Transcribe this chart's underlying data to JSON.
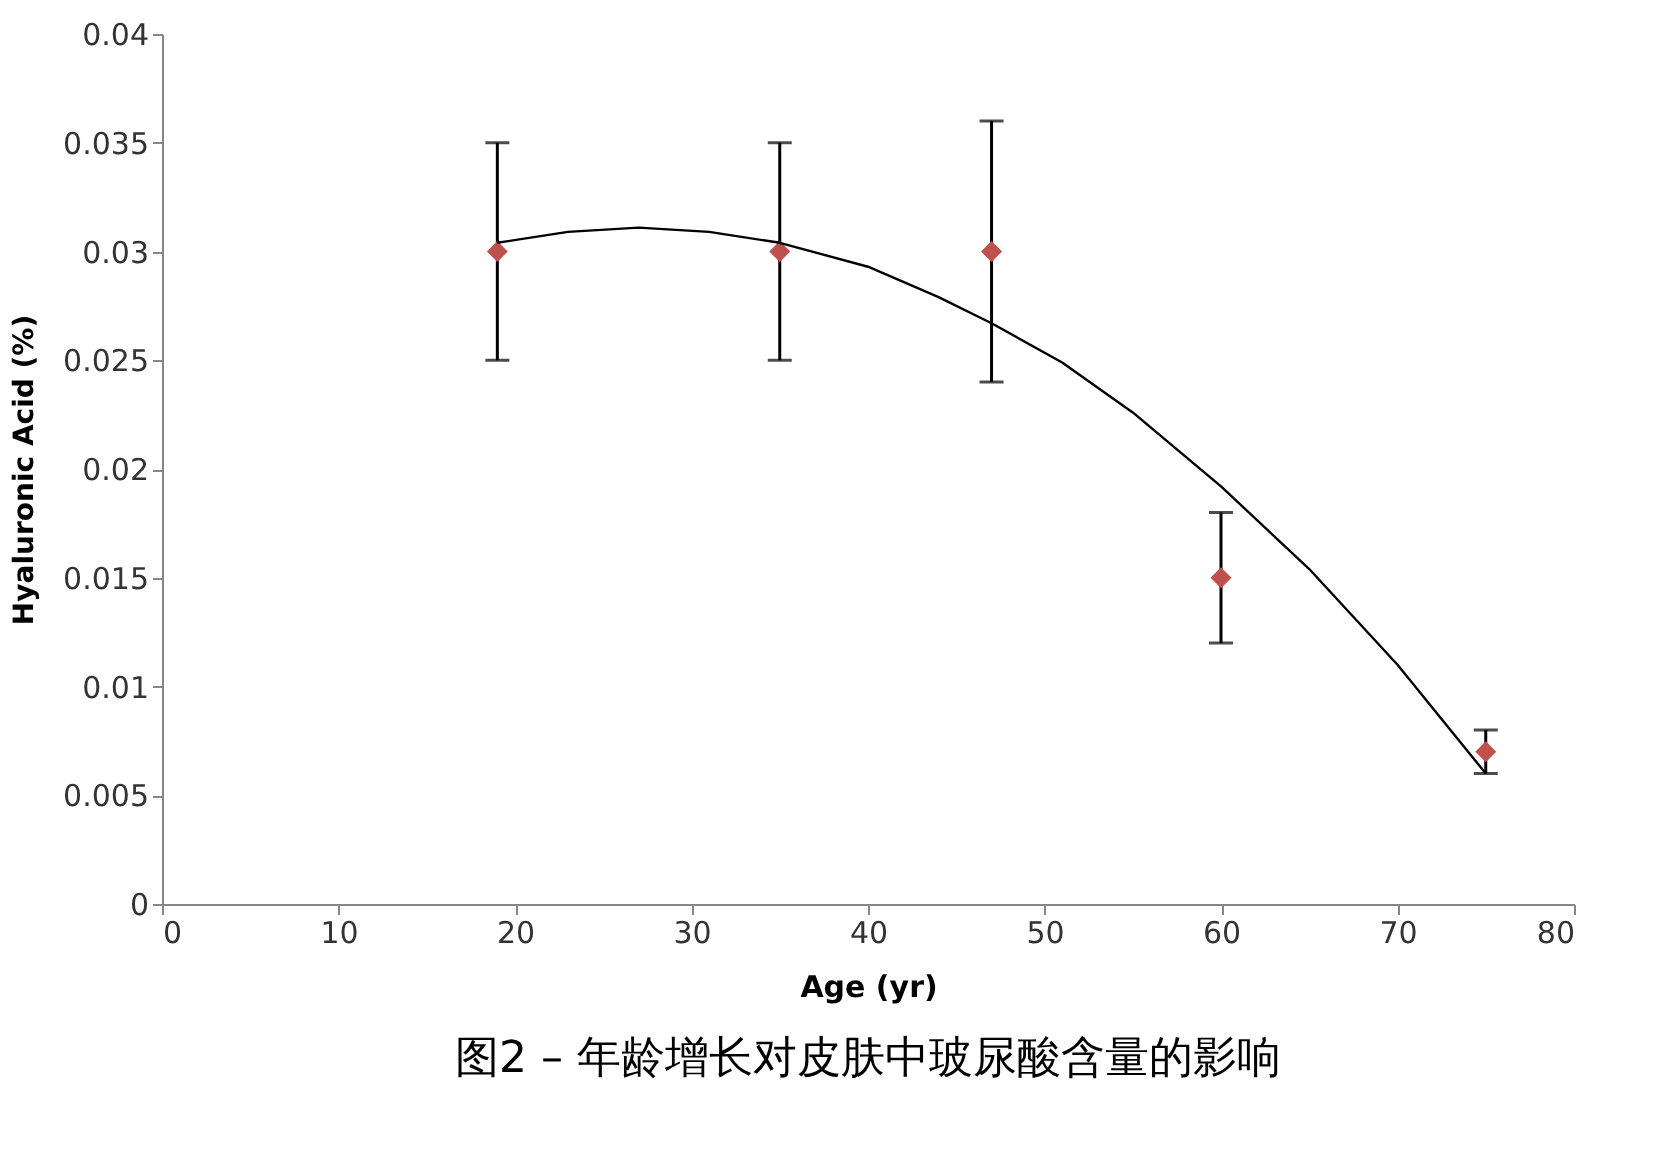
{
  "chart_data": {
    "type": "scatter",
    "title": "图2 – 年龄增长对皮肤中玻尿酸含量的影响",
    "xlabel": "Age (yr)",
    "ylabel": "Hyaluronic Acid (%)",
    "xlim": [
      0,
      80
    ],
    "xticks": [
      0,
      10,
      20,
      30,
      40,
      50,
      60,
      70,
      80
    ],
    "ylim": [
      0,
      0.04
    ],
    "yticks": [
      0,
      0.005,
      0.01,
      0.015,
      0.02,
      0.025,
      0.03,
      0.035,
      0.04
    ],
    "grid": false,
    "marker": "diamond",
    "series": [
      {
        "color": "#c0504d",
        "x": [
          19,
          35,
          47,
          60,
          75
        ],
        "values": [
          0.03,
          0.03,
          0.03,
          0.015,
          0.007
        ],
        "errors": [
          0.005,
          0.005,
          0.006,
          0.003,
          0.001
        ]
      },
      {
        "type": "line",
        "color": "#000000",
        "marker": "none",
        "line_style": "solid",
        "x": [
          19,
          23,
          27,
          31,
          35,
          40,
          44,
          47,
          51,
          55,
          60,
          65,
          70,
          75
        ],
        "values": [
          0.0304,
          0.0309,
          0.0311,
          0.0309,
          0.0304,
          0.0293,
          0.0279,
          0.0267,
          0.0249,
          0.0226,
          0.0192,
          0.0154,
          0.011,
          0.006
        ]
      }
    ]
  }
}
